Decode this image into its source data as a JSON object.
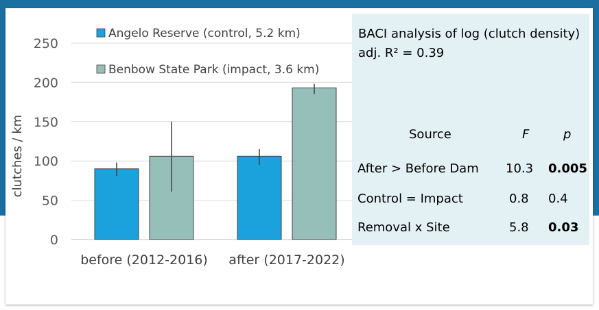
{
  "chart_data": {
    "type": "bar",
    "categories": [
      "before (2012-2016)",
      "after (2017-2022)"
    ],
    "series": [
      {
        "name": "Angelo Reserve (control, 5.2 km)",
        "color": "#1ba1dc",
        "values": [
          90,
          106
        ],
        "error": [
          [
            81,
            98
          ],
          [
            95,
            115
          ]
        ]
      },
      {
        "name": "Benbow State Park (impact, 3.6 km)",
        "color": "#97bfb9",
        "values": [
          106,
          193
        ],
        "error": [
          [
            61,
            150
          ],
          [
            185,
            198
          ]
        ]
      }
    ],
    "ylabel": "clutches / km",
    "xlabel": "",
    "ylim": [
      0,
      250
    ],
    "yticks": [
      0,
      50,
      100,
      150,
      200,
      250
    ],
    "grid": true,
    "legend_position": "top"
  },
  "stats": {
    "title": "BACI analysis of log (clutch density)",
    "adj_r2": "adj. R² = 0.39",
    "headers": {
      "source": "Source",
      "f": "F",
      "p": "p"
    },
    "rows": [
      {
        "source": "After > Before Dam",
        "f": "10.3",
        "p": "0.005",
        "p_bold": true
      },
      {
        "source": "Control = Impact",
        "f": "0.8",
        "p": "0.4",
        "p_bold": false
      },
      {
        "source": "Removal x Site",
        "f": "5.8",
        "p": "0.03",
        "p_bold": true
      }
    ]
  }
}
